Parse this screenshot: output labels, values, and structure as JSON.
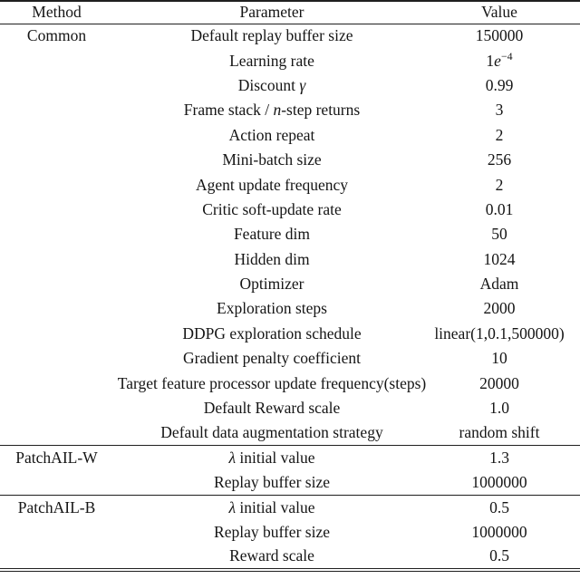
{
  "table": {
    "columns": [
      "Method",
      "Parameter",
      "Value"
    ],
    "sections": [
      {
        "method": "Common",
        "rows": [
          {
            "parameter": "Default replay buffer size",
            "value": "150000"
          },
          {
            "parameter": "Learning rate",
            "value_parts": [
              {
                "t": "1"
              },
              {
                "t": "e",
                "italic": true
              },
              {
                "t": "−4",
                "sup": true
              }
            ]
          },
          {
            "parameter_parts": [
              {
                "t": "Discount "
              },
              {
                "t": "γ",
                "italic": true
              }
            ],
            "value": "0.99"
          },
          {
            "parameter_parts": [
              {
                "t": "Frame stack / "
              },
              {
                "t": "n",
                "italic": true
              },
              {
                "t": "-step returns"
              }
            ],
            "value": "3"
          },
          {
            "parameter": "Action repeat",
            "value": "2"
          },
          {
            "parameter": "Mini-batch size",
            "value": "256"
          },
          {
            "parameter": "Agent update frequency",
            "value": "2"
          },
          {
            "parameter": "Critic soft-update rate",
            "value": "0.01"
          },
          {
            "parameter": "Feature dim",
            "value": "50"
          },
          {
            "parameter": "Hidden dim",
            "value": "1024"
          },
          {
            "parameter": "Optimizer",
            "value": "Adam"
          },
          {
            "parameter": "Exploration steps",
            "value": "2000"
          },
          {
            "parameter": "DDPG exploration schedule",
            "value": "linear(1,0.1,500000)"
          },
          {
            "parameter": "Gradient penalty coefficient",
            "value": "10"
          },
          {
            "parameter": "Target feature processor update frequency(steps)",
            "value": "20000"
          },
          {
            "parameter": "Default Reward scale",
            "value": "1.0"
          },
          {
            "parameter": "Default data augmentation strategy",
            "value": "random shift"
          }
        ]
      },
      {
        "method": "PatchAIL-W",
        "rows": [
          {
            "parameter_parts": [
              {
                "t": "λ",
                "italic": true
              },
              {
                "t": " initial value"
              }
            ],
            "value": "1.3"
          },
          {
            "parameter": "Replay buffer size",
            "value": "1000000"
          }
        ]
      },
      {
        "method": "PatchAIL-B",
        "rows": [
          {
            "parameter_parts": [
              {
                "t": "λ",
                "italic": true
              },
              {
                "t": " initial value"
              }
            ],
            "value": "0.5"
          },
          {
            "parameter": "Replay buffer size",
            "value": "1000000"
          },
          {
            "parameter": "Reward scale",
            "value": "0.5"
          }
        ]
      }
    ]
  }
}
